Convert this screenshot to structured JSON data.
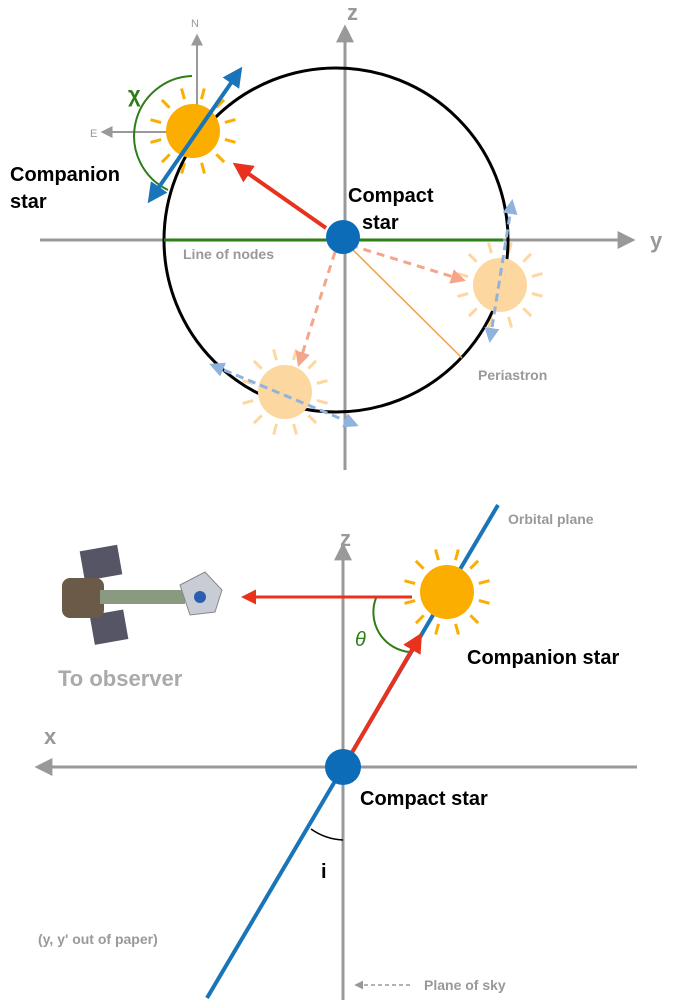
{
  "top_panel": {
    "axis_z": "z",
    "axis_y": "y",
    "compass_north": "N",
    "compass_east": "E",
    "angle_chi": "χ",
    "companion_label": [
      "Companion",
      "star"
    ],
    "compact_label": [
      "Compact",
      "star"
    ],
    "line_of_nodes": "Line of nodes",
    "periastron": "Periastron"
  },
  "bottom_panel": {
    "orbital_plane": "Orbital plane",
    "axis_z": "z",
    "angle_theta": "θ",
    "companion_label": "Companion star",
    "observer_label": "To observer",
    "axis_x": "x",
    "compact_label": "Compact star",
    "angle_i": "i",
    "note": "(y, y' out of paper)",
    "plane_of_sky": "Plane of sky"
  }
}
